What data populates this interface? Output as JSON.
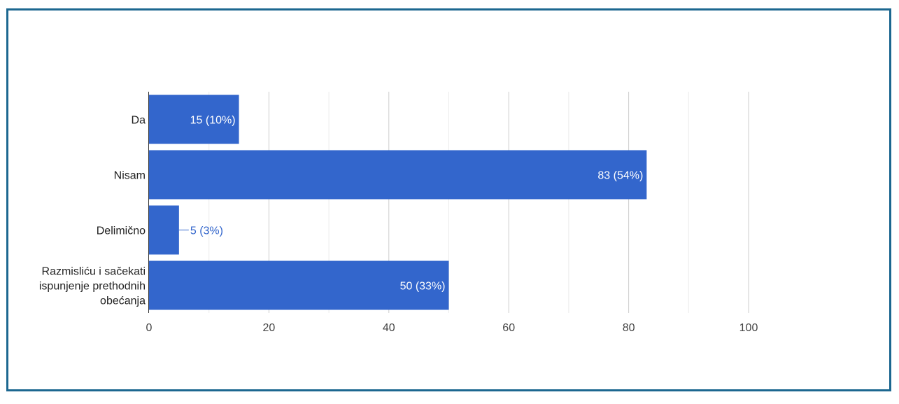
{
  "chart_data": {
    "type": "bar",
    "orientation": "horizontal",
    "title": "",
    "xlabel": "",
    "ylabel": "",
    "categories": [
      [
        "Da"
      ],
      [
        "Nisam"
      ],
      [
        "Delimično"
      ],
      [
        "Razmisliću i sačekati",
        "ispunjenje prethodnih",
        "obećanja"
      ]
    ],
    "values": [
      15,
      83,
      5,
      50
    ],
    "data_labels": [
      "15 (10%)",
      "83 (54%)",
      "5 (3%)",
      "50 (33%)"
    ],
    "xlim": [
      0,
      100
    ],
    "ticks": [
      0,
      20,
      40,
      60,
      80,
      100
    ],
    "tick_labels": [
      "0",
      "20",
      "40",
      "60",
      "80",
      "100"
    ],
    "minor_ticks": [
      10,
      30,
      50,
      70,
      90
    ],
    "grid": true,
    "legend": "none",
    "colors": {
      "bar": "#3366cc",
      "frame": "#1c6790",
      "grid": "#cccccc",
      "minor_grid": "#ebebeb",
      "text": "#222222",
      "axis_text": "#444444"
    }
  }
}
